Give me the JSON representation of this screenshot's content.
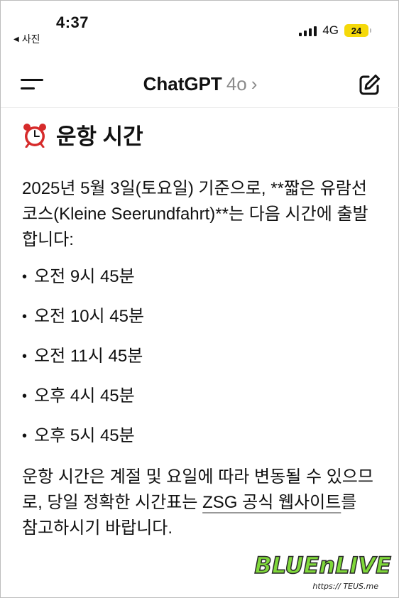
{
  "status_bar": {
    "time": "4:37",
    "back_app_label": "사진",
    "network": "4G",
    "battery": "24"
  },
  "nav": {
    "title": "ChatGPT",
    "model": "4o",
    "chevron": "›"
  },
  "content": {
    "heading": "운항 시간",
    "intro": "2025년 5월 3일(토요일) 기준으로, **짧은 유람선 코스(Kleine Seerundfahrt)**는 다음 시간에 출발합니다:",
    "times": [
      "오전 9시 45분",
      "오전 10시 45분",
      "오전 11시 45분",
      "오후 4시 45분",
      "오후 5시 45분"
    ],
    "note_before_link": "운항 시간은 계절 및 요일에 따라 변동될 수 있으므로, 당일 정확한 시간표는 ",
    "note_link": "ZSG 공식 웹사이트",
    "note_after_link": "를 참고하시기 바랍니다."
  },
  "watermark": {
    "line1": "BLUEnLIVE",
    "line2": "https:// TEUS.me"
  },
  "colors": {
    "battery": "#f5d90a",
    "muted": "#8a8a8a",
    "clock_red": "#d62b2b"
  }
}
